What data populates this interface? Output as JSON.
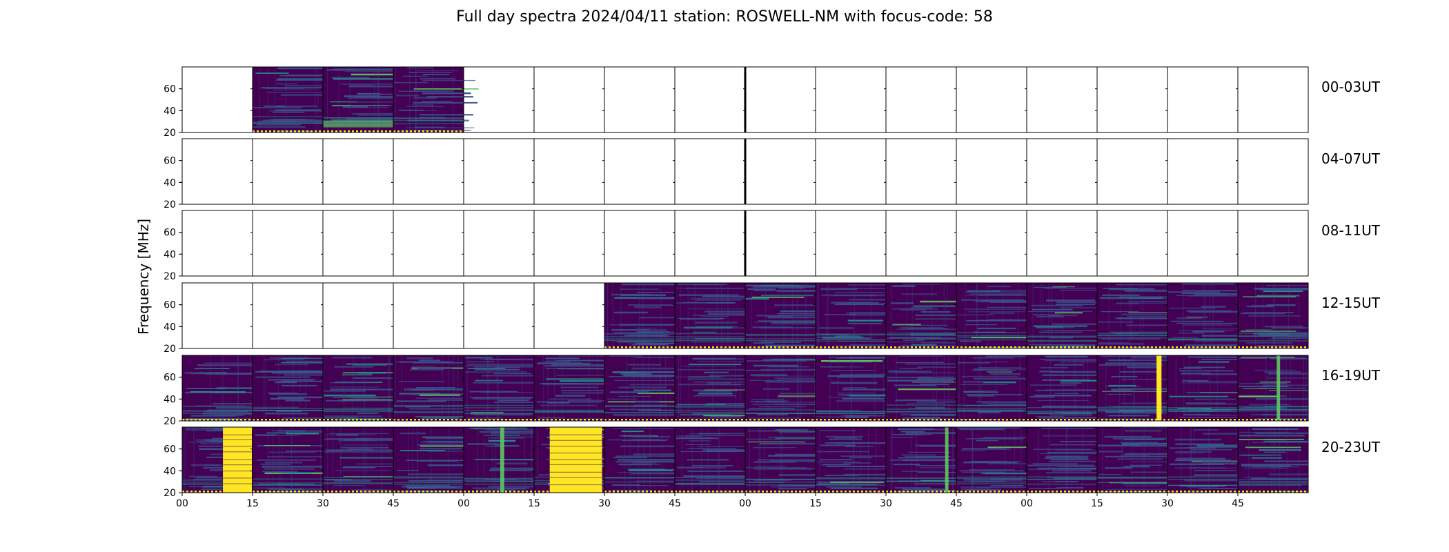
{
  "chart_data": {
    "type": "heatmap",
    "title": "Full day spectra 2024/04/11 station: ROSWELL-NM with focus-code: 58",
    "ylabel": "Frequency [MHz]",
    "xlabel": "",
    "ylim": [
      20,
      80
    ],
    "yticks": [
      "20",
      "40",
      "60"
    ],
    "xticks": [
      "00",
      "15",
      "30",
      "45",
      "00",
      "15",
      "30",
      "45",
      "00",
      "15",
      "30",
      "45",
      "00",
      "15",
      "30",
      "45"
    ],
    "colormap": [
      "#440154",
      "#3b528b",
      "#21918c",
      "#5ec962",
      "#fde725"
    ],
    "rows": [
      {
        "label": "00-03UT",
        "data": [
          0,
          1,
          1,
          1,
          0,
          0,
          0,
          0,
          0,
          0,
          0,
          0,
          0,
          0,
          0,
          0
        ]
      },
      {
        "label": "04-07UT",
        "data": [
          0,
          0,
          0,
          0,
          0,
          0,
          0,
          0,
          0,
          0,
          0,
          0,
          0,
          0,
          0,
          0
        ]
      },
      {
        "label": "08-11UT",
        "data": [
          0,
          0,
          0,
          0,
          0,
          0,
          0,
          0,
          0,
          0,
          0,
          0,
          0,
          0,
          0,
          0
        ]
      },
      {
        "label": "12-15UT",
        "data": [
          0,
          0,
          0,
          0,
          0,
          0,
          1,
          1,
          1,
          1,
          1,
          1,
          1,
          1,
          1,
          1
        ]
      },
      {
        "label": "16-19UT",
        "data": [
          1,
          1,
          1,
          1,
          1,
          1,
          1,
          1,
          1,
          1,
          1,
          1,
          1,
          1,
          1,
          1
        ]
      },
      {
        "label": "20-23UT",
        "data": [
          1,
          1,
          1,
          1,
          1,
          1,
          1,
          1,
          1,
          1,
          1,
          1,
          1,
          1,
          1,
          1
        ]
      }
    ]
  }
}
